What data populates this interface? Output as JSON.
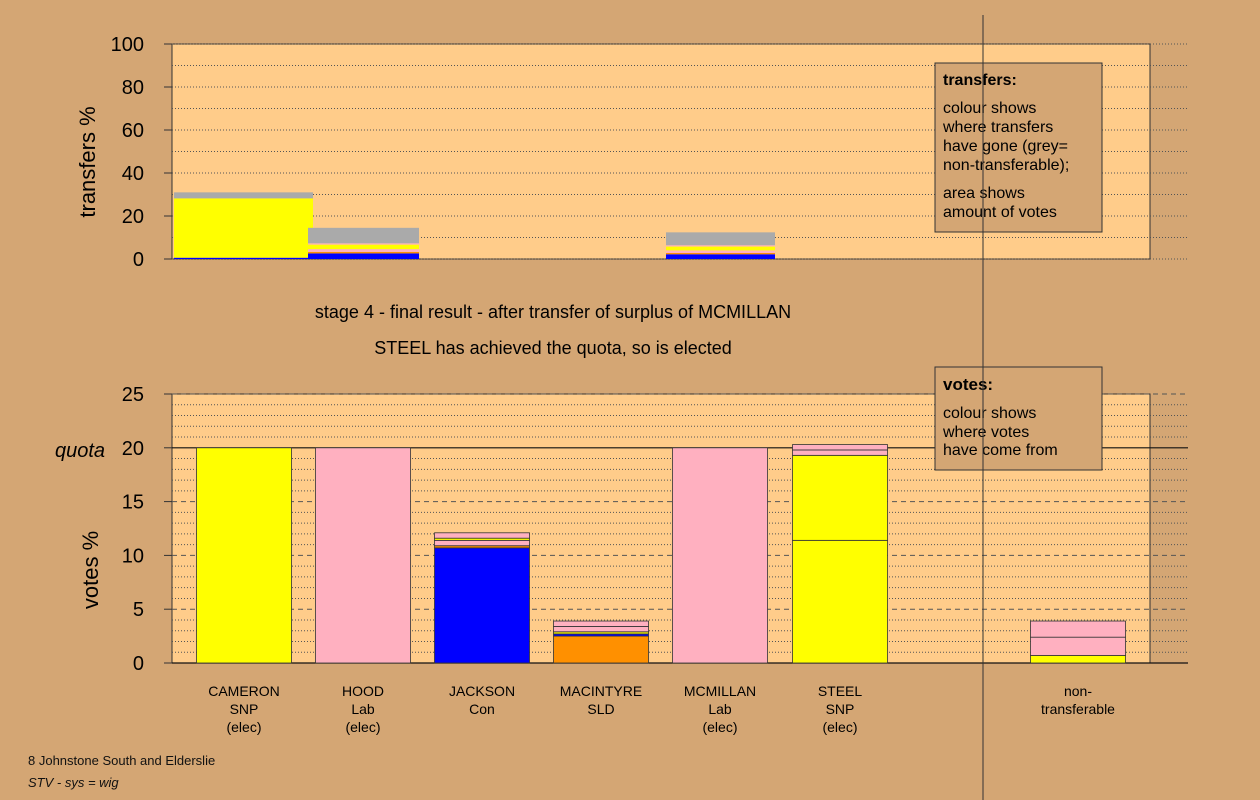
{
  "stage_title": "stage 4 - final result - after transfer of surplus of MCMILLAN",
  "stage_subtitle": "STEEL has achieved the quota, so is elected",
  "footer": {
    "ward": "8 Johnstone South and Elderslie",
    "system": "STV - sys = wig"
  },
  "legend_transfers": {
    "title": "transfers:",
    "lines": [
      "colour shows",
      "where transfers",
      "have gone (grey=",
      "non-transferable);"
    ],
    "lines2": [
      "area shows",
      "amount of votes"
    ]
  },
  "legend_votes": {
    "title": "votes:",
    "lines": [
      "colour shows",
      "where votes",
      "have come from"
    ]
  },
  "colors": {
    "background": "#d4a674",
    "plot_bg": "#ffcc8a",
    "SNP": "#ffff00",
    "Lab": "#ffb0c0",
    "Con": "#0000ff",
    "SLD": "#ff9000",
    "non_transferable": "#aaaaaa"
  },
  "chart_data": [
    {
      "type": "bar",
      "stacked": true,
      "ylabel": "transfers %",
      "ylim": [
        0,
        100
      ],
      "yticks": [
        0,
        20,
        40,
        60,
        80,
        100
      ],
      "candidates": [
        "CAMERON",
        "HOOD",
        "JACKSON",
        "MACINTYRE",
        "MCMILLAN",
        "STEEL",
        "non-transferable"
      ],
      "stacks": [
        {
          "candidate": "CAMERON",
          "segments": [
            {
              "party": "Con",
              "value": 0.6
            },
            {
              "party": "SNP",
              "value": 27.6
            },
            {
              "party": "non_transferable",
              "value": 2.8
            }
          ]
        },
        {
          "candidate": "HOOD",
          "segments": [
            {
              "party": "Con",
              "value": 2.6
            },
            {
              "party": "SLD",
              "value": 0.7
            },
            {
              "party": "Lab",
              "value": 1.3
            },
            {
              "party": "SNP",
              "value": 2.1
            },
            {
              "party": "Lab",
              "value": 0.6
            },
            {
              "party": "non_transferable",
              "value": 7.2
            }
          ]
        },
        {
          "candidate": "MCMILLAN",
          "segments": [
            {
              "party": "Con",
              "value": 2.2
            },
            {
              "party": "SLD",
              "value": 0.6
            },
            {
              "party": "Lab",
              "value": 1.2
            },
            {
              "party": "SNP",
              "value": 1.8
            },
            {
              "party": "Lab",
              "value": 0.6
            },
            {
              "party": "non_transferable",
              "value": 6.0
            }
          ]
        }
      ]
    },
    {
      "type": "bar",
      "stacked": true,
      "ylabel": "votes %",
      "ylim": [
        0,
        25
      ],
      "yticks": [
        0,
        5,
        10,
        15,
        20,
        25
      ],
      "quota": 20,
      "quota_label": "quota",
      "categories": [
        {
          "name": "CAMERON",
          "party": "SNP",
          "status": "(elec)"
        },
        {
          "name": "HOOD",
          "party": "Lab",
          "status": "(elec)"
        },
        {
          "name": "JACKSON",
          "party": "Con",
          "status": ""
        },
        {
          "name": "MACINTYRE",
          "party": "SLD",
          "status": ""
        },
        {
          "name": "MCMILLAN",
          "party": "Lab",
          "status": "(elec)"
        },
        {
          "name": "STEEL",
          "party": "SNP",
          "status": "(elec)"
        }
      ],
      "nontransferable_label": [
        "non-",
        "transferable"
      ],
      "stacks": [
        [
          {
            "party": "SNP",
            "value": 20.0
          }
        ],
        [
          {
            "party": "Lab",
            "value": 20.0
          }
        ],
        [
          {
            "party": "Con",
            "value": 10.7
          },
          {
            "party": "SLD",
            "value": 0.2
          },
          {
            "party": "Lab",
            "value": 0.5
          },
          {
            "party": "SNP",
            "value": 0.2
          },
          {
            "party": "Lab",
            "value": 0.5
          }
        ],
        [
          {
            "party": "SLD",
            "value": 2.5
          },
          {
            "party": "Con",
            "value": 0.2
          },
          {
            "party": "SNP",
            "value": 0.2
          },
          {
            "party": "Lab",
            "value": 0.5
          },
          {
            "party": "Lab",
            "value": 0.5
          }
        ],
        [
          {
            "party": "Lab",
            "value": 20.0
          }
        ],
        [
          {
            "party": "SNP",
            "value": 11.4
          },
          {
            "party": "SNP",
            "value": 7.9
          },
          {
            "party": "Lab",
            "value": 0.5
          },
          {
            "party": "Lab",
            "value": 0.5
          }
        ],
        [
          {
            "party": "SNP",
            "value": 0.7
          },
          {
            "party": "Lab",
            "value": 1.7
          },
          {
            "party": "Lab",
            "value": 1.5
          }
        ]
      ]
    }
  ]
}
